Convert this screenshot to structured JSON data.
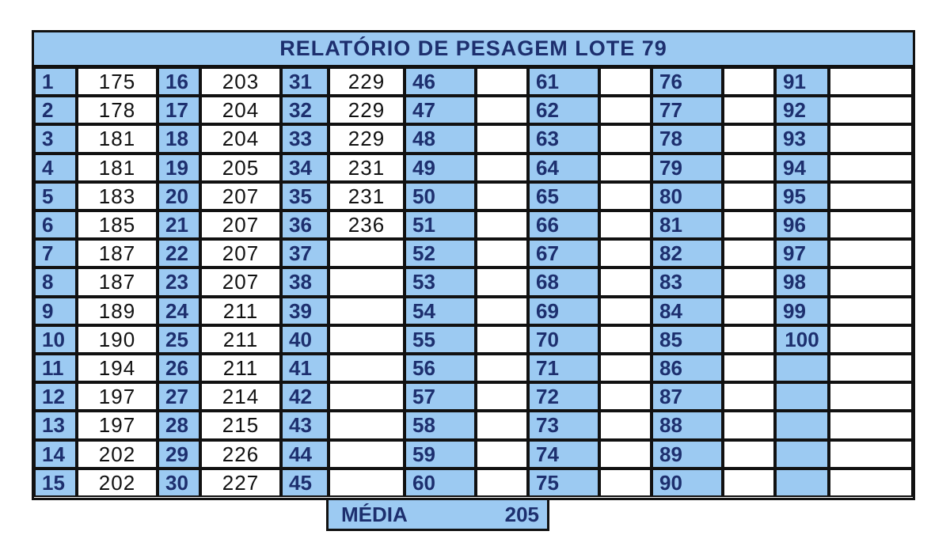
{
  "title": "RELATÓRIO DE PESAGEM LOTE 79",
  "weights": [
    175,
    178,
    181,
    181,
    183,
    185,
    187,
    187,
    189,
    190,
    194,
    197,
    197,
    202,
    202,
    203,
    204,
    204,
    205,
    207,
    207,
    207,
    207,
    211,
    211,
    211,
    214,
    215,
    226,
    227,
    229,
    229,
    229,
    231,
    231,
    236
  ],
  "total_entries": 100,
  "rows_per_column": 15,
  "media": {
    "label": "MÉDIA",
    "value": "205"
  },
  "colors": {
    "header_fill": "#9ccaf2",
    "text_blue": "#1d2f6e",
    "border": "#111111"
  }
}
